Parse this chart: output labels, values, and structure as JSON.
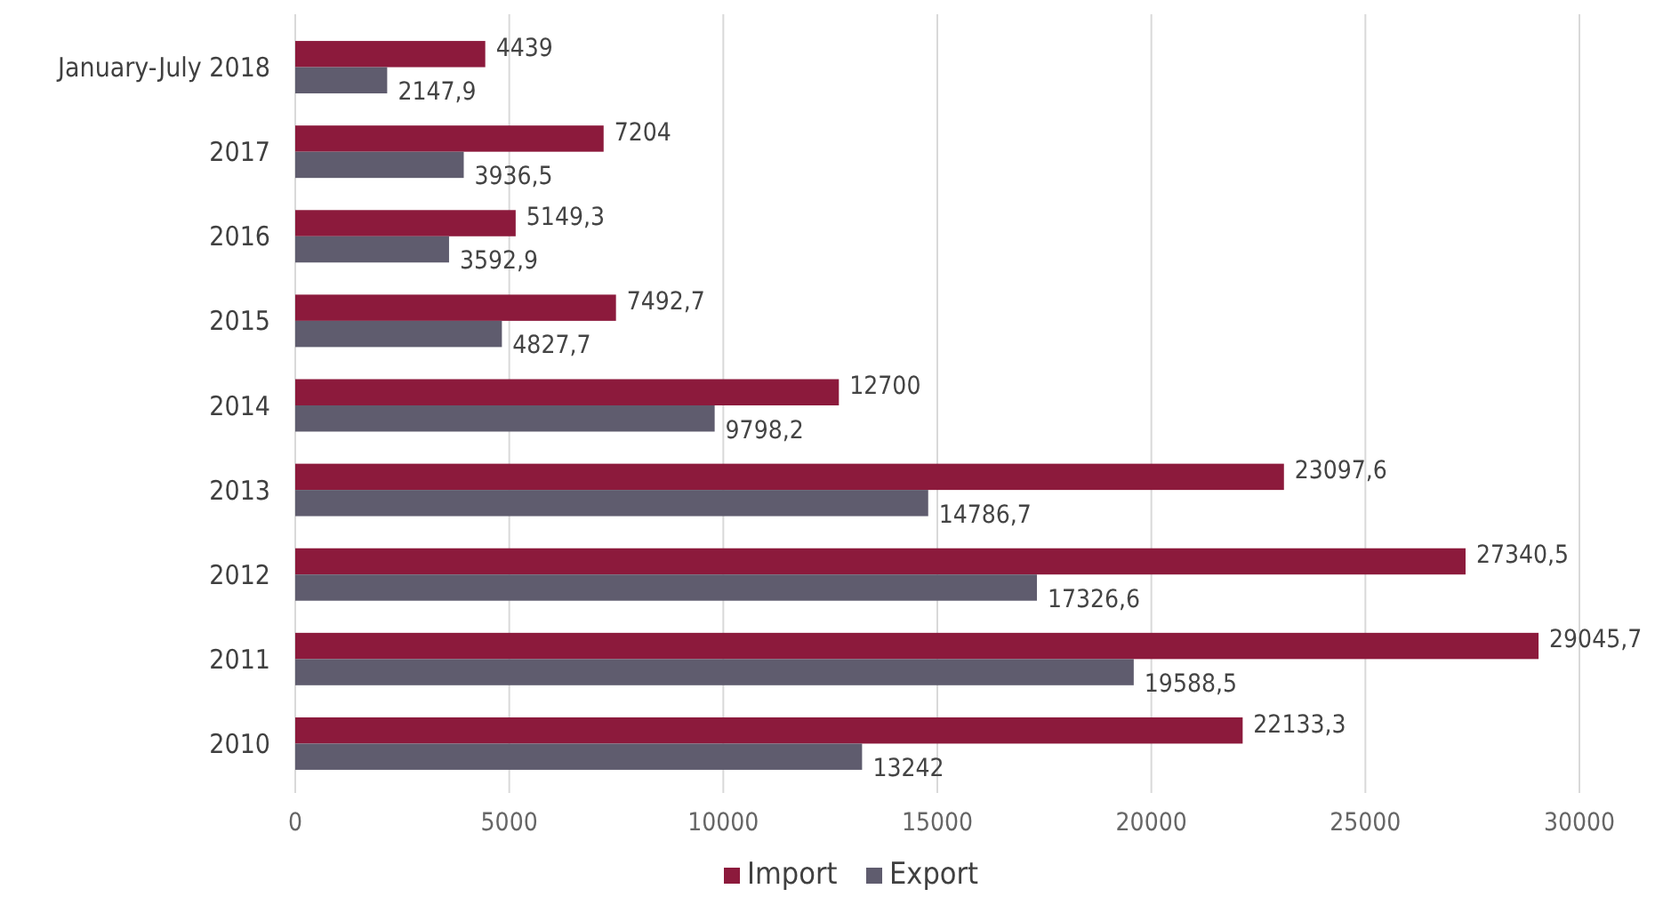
{
  "chart_data": {
    "type": "bar",
    "orientation": "horizontal",
    "categories": [
      "January-July 2018",
      "2017",
      "2016",
      "2015",
      "2014",
      "2013",
      "2012",
      "2011",
      "2010"
    ],
    "series": [
      {
        "name": "Import",
        "color": "#8c1a3c",
        "values": [
          4439,
          7204,
          5149.3,
          7492.7,
          12700,
          23097.6,
          27340.5,
          29045.7,
          22133.3
        ],
        "value_labels": [
          "4439",
          "7204",
          "5149,3",
          "7492,7",
          "12700",
          "23097,6",
          "27340,5",
          "29045,7",
          "22133,3"
        ]
      },
      {
        "name": "Export",
        "color": "#5f5c6e",
        "values": [
          2147.9,
          3936.5,
          3592.9,
          4827.7,
          9798.2,
          14786.7,
          17326.6,
          19588.5,
          13242
        ],
        "value_labels": [
          "2147,9",
          "3936,5",
          "3592,9",
          "4827,7",
          "9798,2",
          "14786,7",
          "17326,6",
          "19588,5",
          "13242"
        ]
      }
    ],
    "xlim": [
      0,
      30000
    ],
    "xticks": [
      0,
      5000,
      10000,
      15000,
      20000,
      25000,
      30000
    ],
    "grid": "x",
    "legend": "bottom"
  }
}
